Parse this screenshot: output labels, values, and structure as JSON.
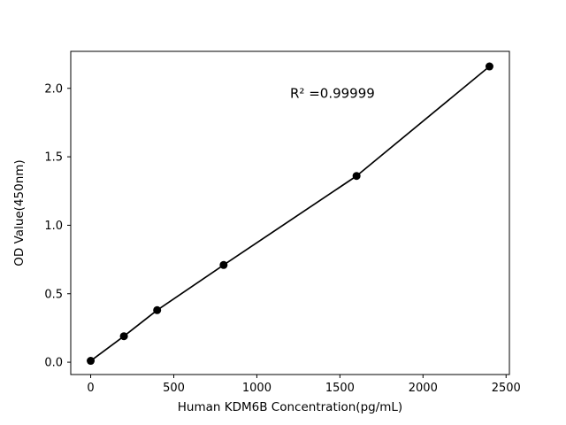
{
  "chart_data": {
    "type": "scatter",
    "title": "",
    "xlabel": "Human KDM6B Concentration(pg/mL)",
    "ylabel": "OD Value(450nm)",
    "x": [
      0,
      200,
      400,
      800,
      1600,
      2400
    ],
    "y": [
      0.01,
      0.19,
      0.38,
      0.71,
      1.36,
      2.16
    ],
    "fit_line": true,
    "annotation": {
      "text": "R² =0.99999",
      "x": 1200,
      "y": 1.93
    },
    "xlim": [
      -120,
      2520
    ],
    "ylim": [
      -0.09,
      2.27
    ],
    "xticks": [
      0,
      500,
      1000,
      1500,
      2000,
      2500
    ],
    "xtick_labels": [
      "0",
      "500",
      "1000",
      "1500",
      "2000",
      "2500"
    ],
    "yticks": [
      0.0,
      0.5,
      1.0,
      1.5,
      2.0
    ],
    "ytick_labels": [
      "0.0",
      "0.5",
      "1.0",
      "1.5",
      "2.0"
    ],
    "grid": false,
    "legend": "none",
    "background_color": "#ffffff",
    "color": "#000000",
    "marker": "circle"
  }
}
